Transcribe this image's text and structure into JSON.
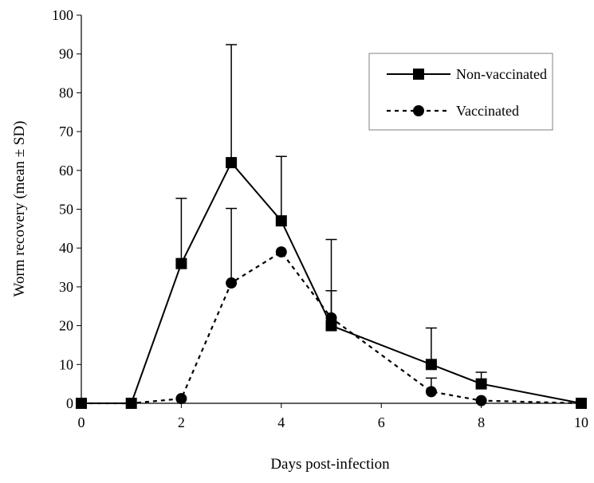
{
  "chart_data": {
    "type": "line",
    "title": "",
    "xlabel": "Days post-infection",
    "ylabel": "Worm recovery (mean ± SD)",
    "xlim": [
      0,
      10
    ],
    "ylim": [
      0,
      100
    ],
    "xticks": [
      0,
      2,
      4,
      6,
      8,
      10
    ],
    "yticks": [
      0,
      10,
      20,
      30,
      40,
      50,
      60,
      70,
      80,
      90,
      100
    ],
    "grid": false,
    "legend_position": "top-right",
    "series": [
      {
        "name": "Non-vaccinated",
        "marker": "square",
        "line_style": "solid",
        "color": "#000000",
        "x": [
          0,
          1,
          2,
          3,
          4,
          5,
          7,
          8,
          10
        ],
        "y": [
          0,
          0,
          36,
          62,
          47,
          20,
          10,
          5,
          0
        ],
        "sd": [
          0,
          0,
          16.8,
          30.4,
          16.6,
          22.2,
          9.4,
          3,
          0
        ]
      },
      {
        "name": "Vaccinated",
        "marker": "circle",
        "line_style": "dashed",
        "color": "#000000",
        "x": [
          0,
          1,
          2,
          3,
          4,
          5,
          7,
          8,
          10
        ],
        "y": [
          0,
          0,
          1.2,
          31,
          39,
          22,
          3,
          0.7,
          0
        ],
        "sd": [
          0,
          0,
          0,
          19.2,
          0,
          7,
          3.5,
          0,
          0
        ]
      }
    ]
  }
}
